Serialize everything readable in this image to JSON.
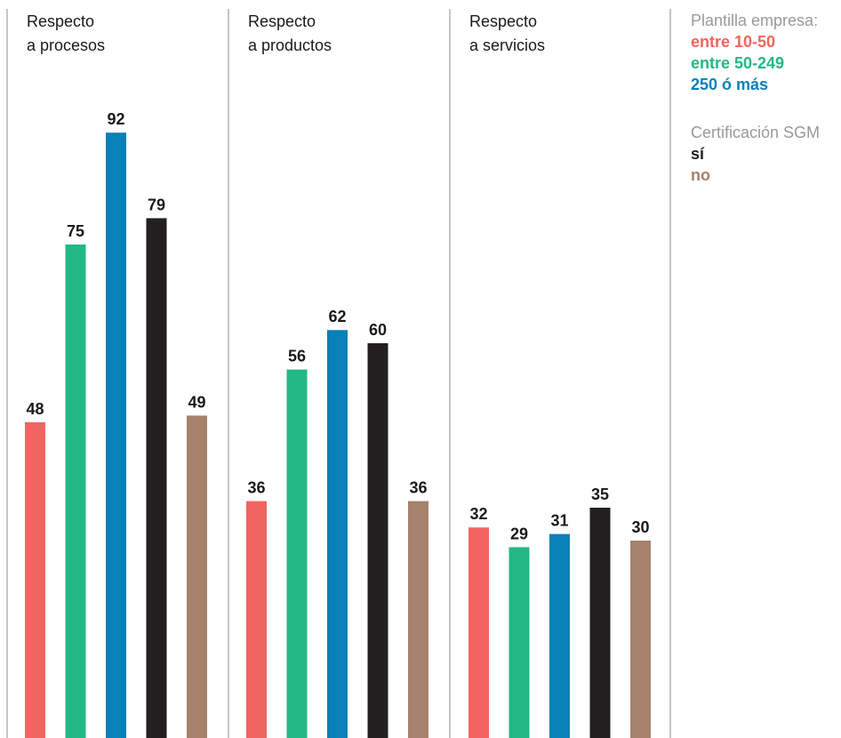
{
  "chart_data": {
    "type": "bar",
    "panels": [
      {
        "title_line1": "Respecto",
        "title_line2": "a procesos",
        "values": [
          48,
          75,
          92,
          79,
          49
        ]
      },
      {
        "title_line1": "Respecto",
        "title_line2": "a productos",
        "values": [
          36,
          56,
          62,
          60,
          36
        ]
      },
      {
        "title_line1": "Respecto",
        "title_line2": "a servicios",
        "values": [
          32,
          29,
          31,
          35,
          30
        ]
      }
    ],
    "series": [
      {
        "name": "entre 10-50",
        "color": "#f0655f"
      },
      {
        "name": "entre 50-249",
        "color": "#22b886"
      },
      {
        "name": "250 ó más",
        "color": "#0a80b8"
      },
      {
        "name": "sí",
        "color": "#221f20"
      },
      {
        "name": "no",
        "color": "#a6816b"
      }
    ],
    "legend": {
      "group1_title": "Plantilla empresa:",
      "group2_title": "Certificación SGM"
    },
    "ylim": [
      0,
      100
    ],
    "grid": false,
    "legend_placement": "top-right"
  }
}
